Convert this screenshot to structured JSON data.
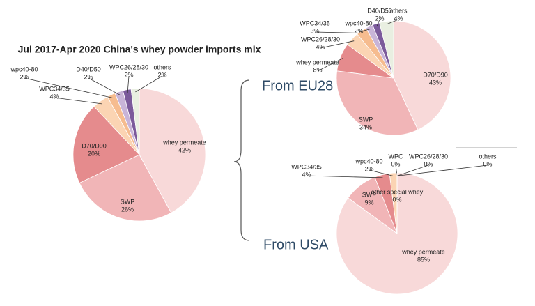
{
  "chart_data": [
    {
      "type": "pie",
      "title": "Jul 2017-Apr 2020 China's whey powder imports mix",
      "categories": [
        "whey permeate",
        "SWP",
        "D70/D90",
        "WPC34/35",
        "wpc40-80",
        "D40/D50",
        "WPC26/28/30",
        "others"
      ],
      "values": [
        42,
        26,
        20,
        4,
        2,
        2,
        2,
        2
      ],
      "value_labels": [
        "42%",
        "26%",
        "20%",
        "4%",
        "2%",
        "2%",
        "2%",
        "2%"
      ],
      "colors": [
        "#f8d9d9",
        "#f1b5b7",
        "#e58b8d",
        "#fbd4b3",
        "#f6bc8f",
        "#c8b4d8",
        "#7b5a9b",
        "#e9efe1"
      ]
    },
    {
      "type": "pie",
      "title": "From EU28",
      "categories": [
        "D70/D90",
        "SWP",
        "whey permeate",
        "WPC26/28/30",
        "WPC34/35",
        "wpc40-80",
        "D40/D50",
        "others"
      ],
      "values": [
        43,
        34,
        8,
        4,
        3,
        2,
        2,
        4
      ],
      "value_labels": [
        "43%",
        "34%",
        "8%",
        "4%",
        "3%",
        "2%",
        "2%",
        "4%"
      ],
      "colors": [
        "#f8d9d9",
        "#f1b5b7",
        "#e58b8d",
        "#fbd4b3",
        "#f6bc8f",
        "#c8b4d8",
        "#7b5a9b",
        "#e9efe1"
      ]
    },
    {
      "type": "pie",
      "title": "From USA",
      "categories": [
        "whey permeate",
        "SWP",
        "WPC34/35",
        "wpc40-80",
        "WPC",
        "other special whey",
        "WPC26/28/30",
        "others"
      ],
      "values": [
        85,
        9,
        4,
        2,
        0,
        0,
        0,
        0
      ],
      "value_labels": [
        "85%",
        "9%",
        "4%",
        "2%",
        "0%",
        "0%",
        "0%",
        "0%"
      ],
      "colors": [
        "#f8d9d9",
        "#f1b5b7",
        "#e58b8d",
        "#fbd4b3",
        "#f6bc8f",
        "#c8b4d8",
        "#7b5a9b",
        "#e9efe1"
      ]
    }
  ]
}
